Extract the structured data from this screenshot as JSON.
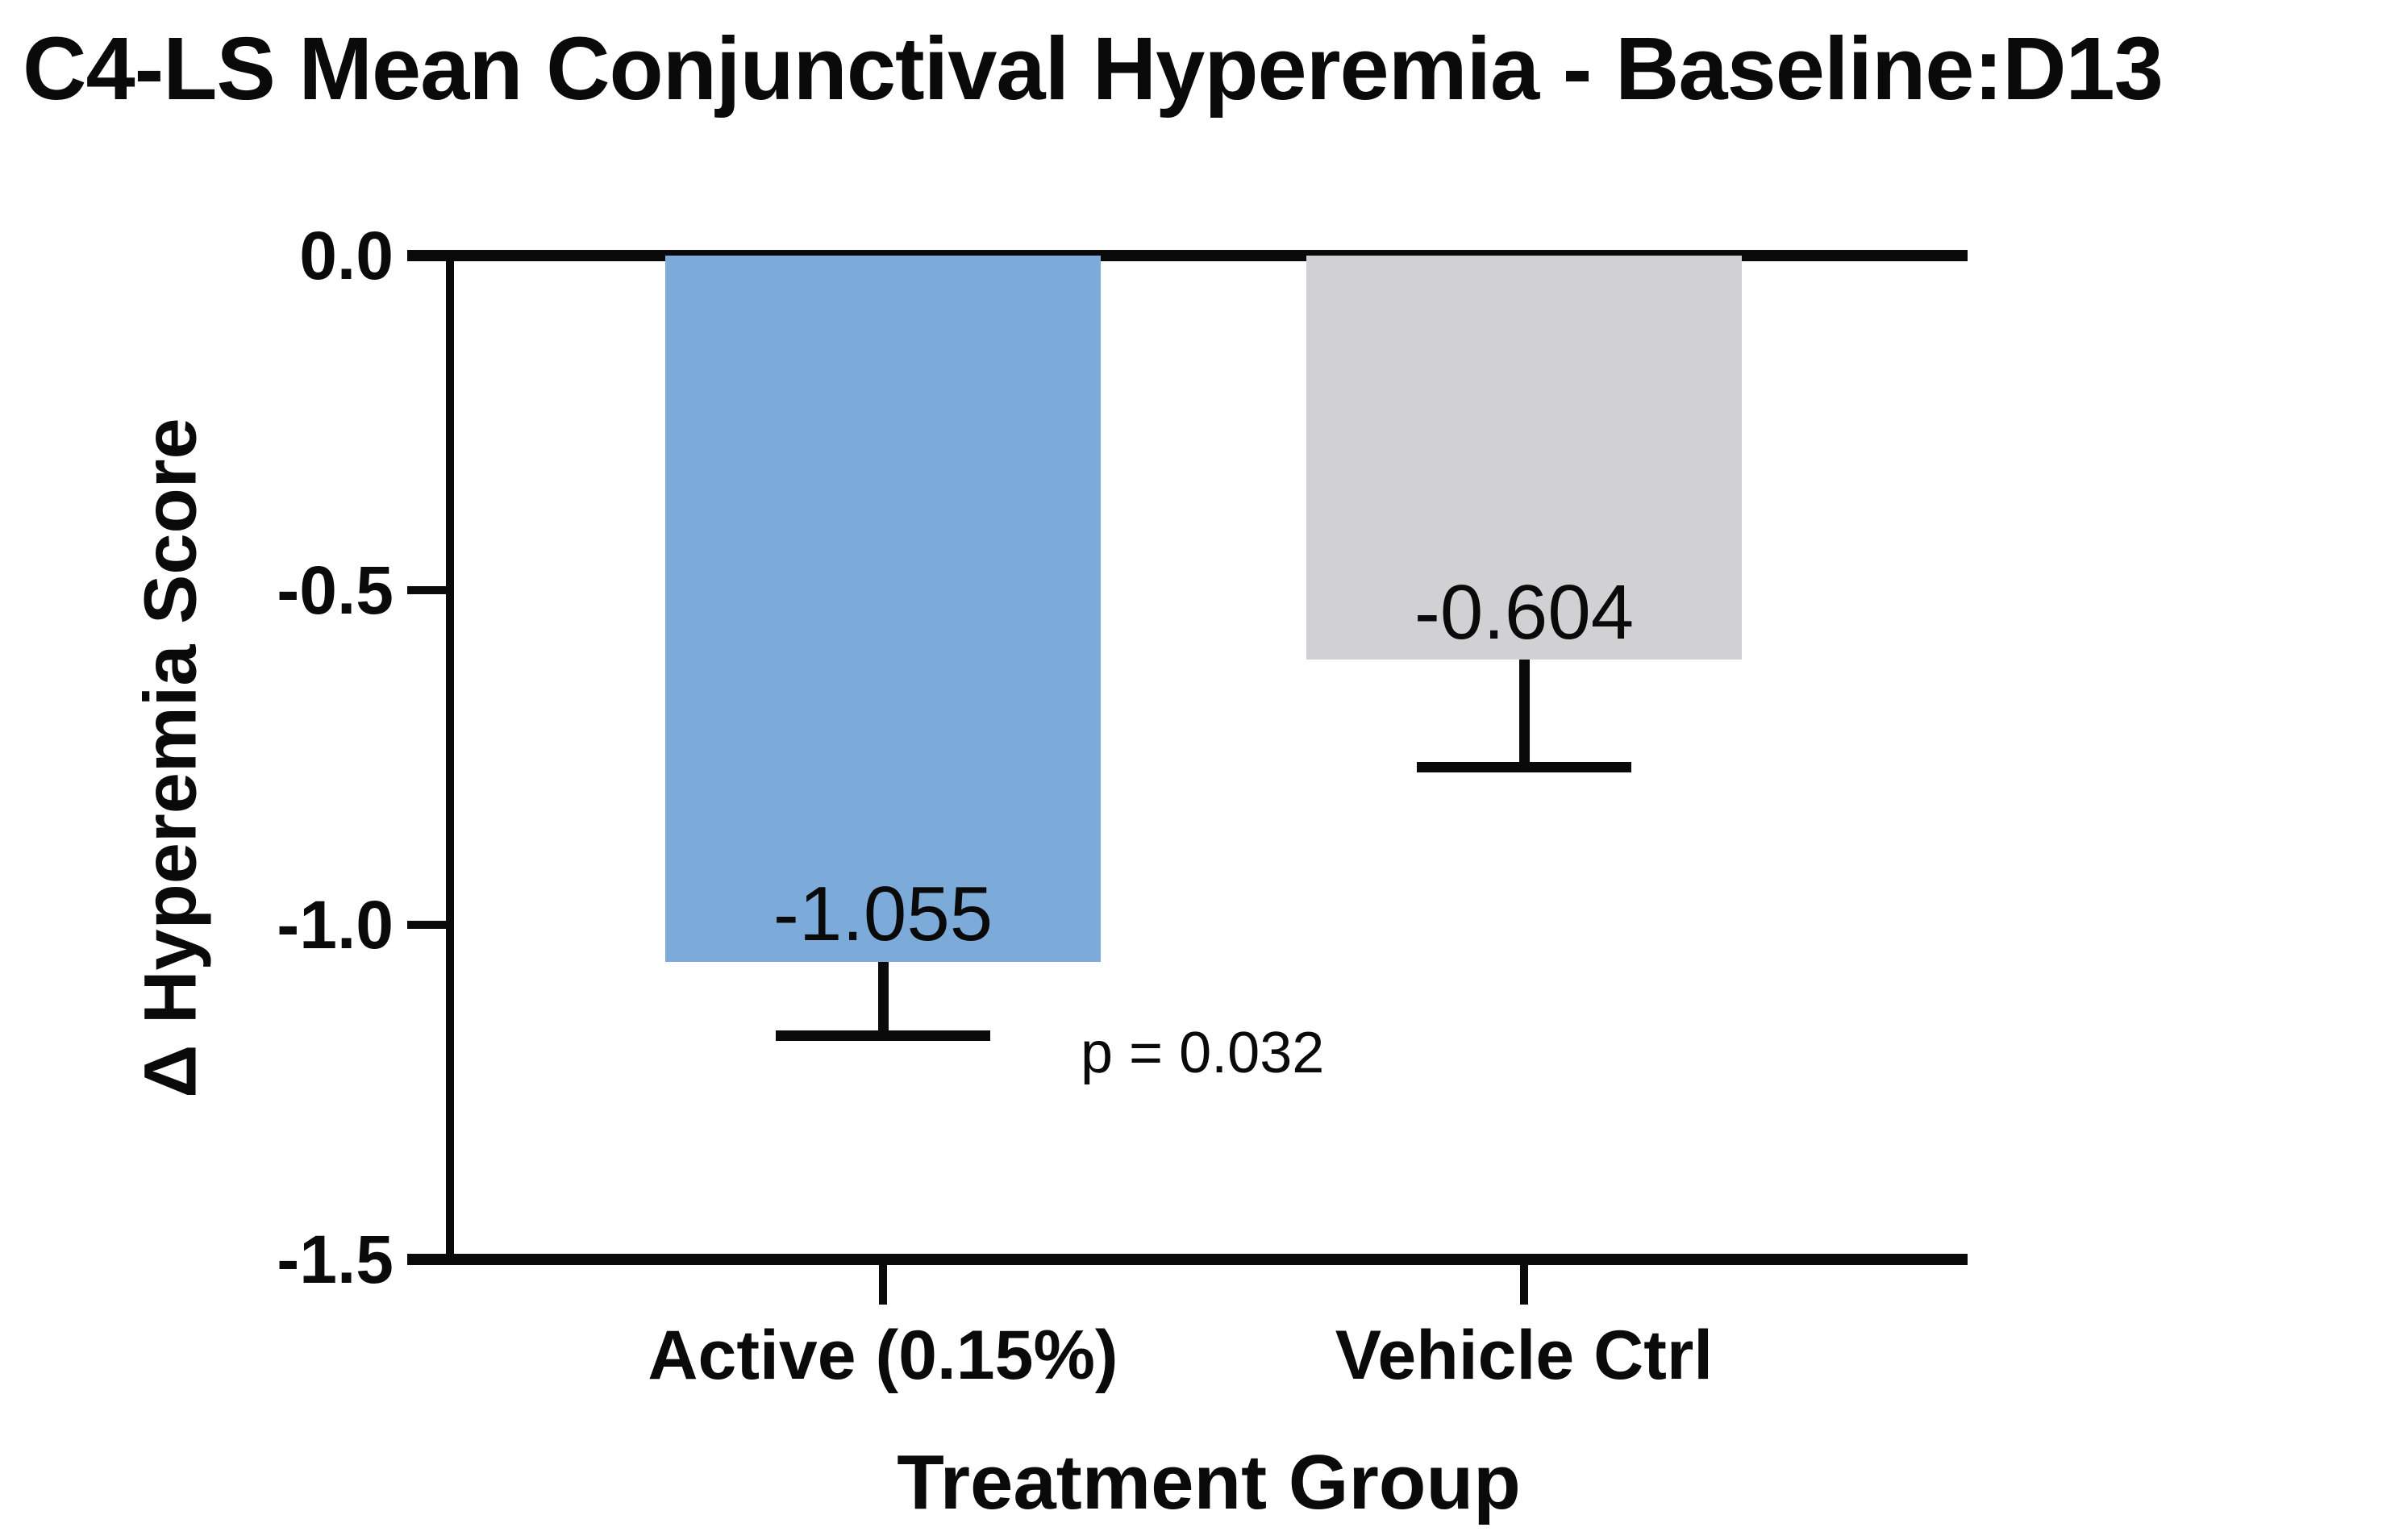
{
  "chart_data": {
    "type": "bar",
    "title": "C4-LS Mean Conjunctival Hyperemia - Baseline:D13",
    "xlabel": "Treatment Group",
    "ylabel": "Δ Hyperemia Score",
    "categories": [
      "Active (0.15%)",
      "Vehicle Ctrl"
    ],
    "values": [
      -1.055,
      -0.604
    ],
    "value_labels": [
      "-1.055",
      "-0.604"
    ],
    "errors": [
      0.11,
      0.16
    ],
    "bar_colors": [
      "#7cabd9",
      "#d1d1d3"
    ],
    "ylim": [
      0,
      -1.5
    ],
    "yticks": [
      {
        "label": "0.0",
        "value": 0.0
      },
      {
        "label": "-0.5",
        "value": -0.5
      },
      {
        "label": "-1.0",
        "value": -1.0
      },
      {
        "label": "-1.5",
        "value": -1.5
      }
    ],
    "annotation": {
      "text": "p = 0.032"
    },
    "grid": false,
    "legend": null,
    "background_color": "#ffffff",
    "text_color": "#0a0a0a"
  }
}
